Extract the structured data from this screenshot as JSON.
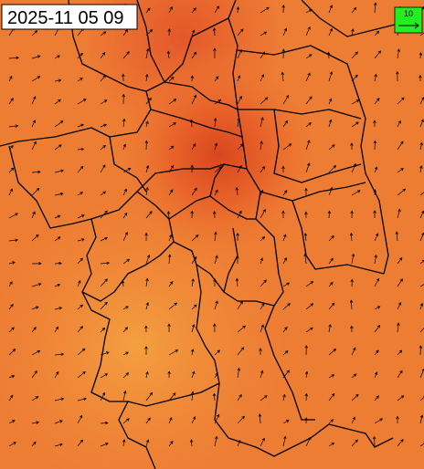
{
  "timestamp": "2025-11 05 09",
  "legend": {
    "label": "10"
  }
}
